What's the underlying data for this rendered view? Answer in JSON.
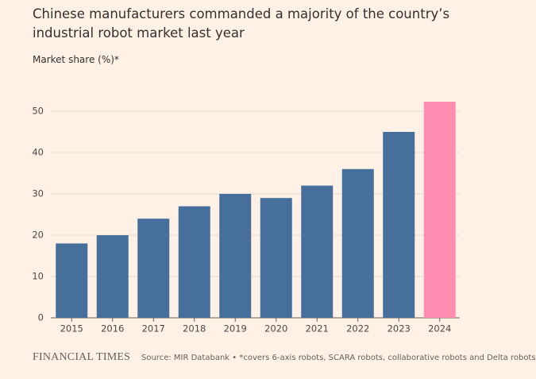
{
  "chart_data": {
    "type": "bar",
    "title": "Chinese manufacturers commanded a majority of the country’s industrial robot market last year",
    "y_label": "Market share (%)*",
    "categories": [
      "2015",
      "2016",
      "2017",
      "2018",
      "2019",
      "2020",
      "2021",
      "2022",
      "2023",
      "2024"
    ],
    "values": [
      18,
      20,
      24,
      27,
      30,
      29,
      32,
      36,
      45,
      52.3
    ],
    "colors": [
      "#466f9b",
      "#466f9b",
      "#466f9b",
      "#466f9b",
      "#466f9b",
      "#466f9b",
      "#466f9b",
      "#466f9b",
      "#466f9b",
      "#ff8db1"
    ],
    "ylim": [
      0,
      55
    ],
    "yticks": [
      0,
      10,
      20,
      30,
      40,
      50
    ],
    "grid": true,
    "brand": "FINANCIAL TIMES",
    "source": "Source: MIR Databank • *covers 6-axis robots, SCARA robots, collaborative robots and Delta robots"
  }
}
